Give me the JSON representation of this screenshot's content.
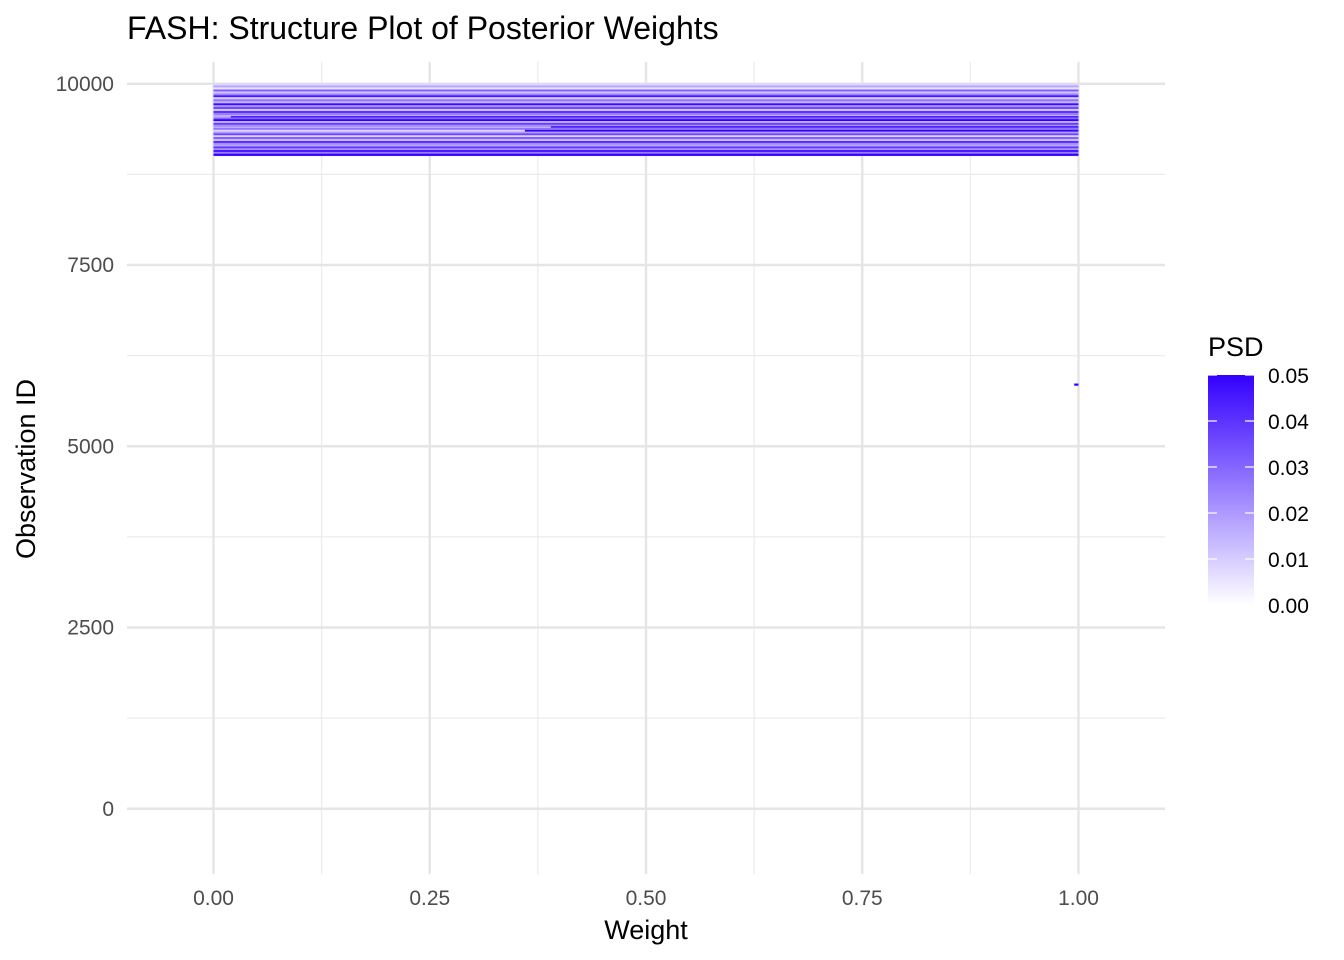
{
  "chart_data": {
    "type": "heatmap",
    "title": "FASH: Structure Plot of Posterior Weights",
    "xlabel": "Weight",
    "ylabel": "Observation ID",
    "xlim": [
      -0.1,
      1.1
    ],
    "ylim": [
      -900,
      10300
    ],
    "x_ticks": [
      0.0,
      0.25,
      0.5,
      0.75,
      1.0
    ],
    "x_tick_labels": [
      "0.00",
      "0.25",
      "0.50",
      "0.75",
      "1.00"
    ],
    "y_ticks": [
      0,
      2500,
      5000,
      7500,
      10000
    ],
    "y_tick_labels": [
      "0",
      "2500",
      "5000",
      "7500",
      "10000"
    ],
    "grid": true,
    "legend": {
      "title": "PSD",
      "placement": "right",
      "range": [
        0.0,
        0.05
      ],
      "breaks": [
        0.0,
        0.01,
        0.02,
        0.03,
        0.04,
        0.05
      ],
      "break_labels": [
        "0.00",
        "0.01",
        "0.02",
        "0.03",
        "0.04",
        "0.05"
      ],
      "low_color": "#ffffff",
      "high_color": "#3300ff"
    },
    "bands": [
      {
        "y": 9990,
        "x0": 0.0,
        "x1": 1.0,
        "psd": 0.008
      },
      {
        "y": 9960,
        "x0": 0.0,
        "x1": 1.0,
        "psd": 0.018
      },
      {
        "y": 9935,
        "x0": 0.0,
        "x1": 1.0,
        "psd": 0.006
      },
      {
        "y": 9905,
        "x0": 0.0,
        "x1": 1.0,
        "psd": 0.032
      },
      {
        "y": 9880,
        "x0": 0.0,
        "x1": 1.0,
        "psd": 0.012
      },
      {
        "y": 9850,
        "x0": 0.0,
        "x1": 1.0,
        "psd": 0.024
      },
      {
        "y": 9825,
        "x0": 0.0,
        "x1": 1.0,
        "psd": 0.045
      },
      {
        "y": 9800,
        "x0": 0.0,
        "x1": 1.0,
        "psd": 0.01
      },
      {
        "y": 9770,
        "x0": 0.0,
        "x1": 1.0,
        "psd": 0.028
      },
      {
        "y": 9745,
        "x0": 0.0,
        "x1": 1.0,
        "psd": 0.015
      },
      {
        "y": 9715,
        "x0": 0.0,
        "x1": 1.0,
        "psd": 0.048
      },
      {
        "y": 9690,
        "x0": 0.0,
        "x1": 1.0,
        "psd": 0.02
      },
      {
        "y": 9665,
        "x0": 0.0,
        "x1": 1.0,
        "psd": 0.035
      },
      {
        "y": 9635,
        "x0": 0.0,
        "x1": 1.0,
        "psd": 0.011
      },
      {
        "y": 9610,
        "x0": 0.0,
        "x1": 1.0,
        "psd": 0.04
      },
      {
        "y": 9580,
        "x0": 0.0,
        "x1": 1.0,
        "psd": 0.026
      },
      {
        "y": 9555,
        "x0": 0.0,
        "x1": 1.0,
        "psd": 0.016
      },
      {
        "y": 9540,
        "x0": 0.02,
        "x1": 1.0,
        "psd": 0.044
      },
      {
        "y": 9520,
        "x0": 0.0,
        "x1": 1.0,
        "psd": 0.03
      },
      {
        "y": 9495,
        "x0": 0.0,
        "x1": 1.0,
        "psd": 0.05
      },
      {
        "y": 9470,
        "x0": 0.0,
        "x1": 1.0,
        "psd": 0.014
      },
      {
        "y": 9445,
        "x0": 0.0,
        "x1": 1.0,
        "psd": 0.038
      },
      {
        "y": 9420,
        "x0": 0.0,
        "x1": 1.0,
        "psd": 0.022
      },
      {
        "y": 9400,
        "x0": 0.39,
        "x1": 1.0,
        "psd": 0.046
      },
      {
        "y": 9380,
        "x0": 0.0,
        "x1": 1.0,
        "psd": 0.027
      },
      {
        "y": 9350,
        "x0": 0.36,
        "x1": 1.0,
        "psd": 0.049
      },
      {
        "y": 9325,
        "x0": 0.0,
        "x1": 1.0,
        "psd": 0.019
      },
      {
        "y": 9300,
        "x0": 0.0,
        "x1": 1.0,
        "psd": 0.036
      },
      {
        "y": 9275,
        "x0": 0.0,
        "x1": 1.0,
        "psd": 0.009
      },
      {
        "y": 9250,
        "x0": 0.0,
        "x1": 1.0,
        "psd": 0.031
      },
      {
        "y": 9220,
        "x0": 0.0,
        "x1": 1.0,
        "psd": 0.013
      },
      {
        "y": 9195,
        "x0": 0.0,
        "x1": 1.0,
        "psd": 0.042
      },
      {
        "y": 9170,
        "x0": 0.0,
        "x1": 1.0,
        "psd": 0.023
      },
      {
        "y": 9145,
        "x0": 0.0,
        "x1": 1.0,
        "psd": 0.017
      },
      {
        "y": 9120,
        "x0": 0.0,
        "x1": 1.0,
        "psd": 0.039
      },
      {
        "y": 9095,
        "x0": 0.0,
        "x1": 1.0,
        "psd": 0.021
      },
      {
        "y": 9070,
        "x0": 0.0,
        "x1": 1.0,
        "psd": 0.047
      },
      {
        "y": 9045,
        "x0": 0.0,
        "x1": 1.0,
        "psd": 0.025
      },
      {
        "y": 9020,
        "x0": 0.0,
        "x1": 1.0,
        "psd": 0.05
      },
      {
        "y": 5850,
        "x0": 0.995,
        "x1": 1.0,
        "psd": 0.05
      }
    ]
  }
}
